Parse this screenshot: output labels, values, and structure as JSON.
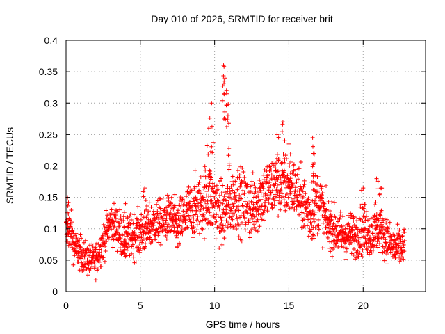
{
  "chart_data": {
    "type": "scatter",
    "title": "Day 010 of 2026, SRMTID for receiver brit",
    "xlabel": "GPS time / hours",
    "ylabel": "SRMTID / TECUs",
    "xlim": [
      0,
      24.2
    ],
    "ylim": [
      0,
      0.4
    ],
    "xticks": [
      0,
      5,
      10,
      15,
      20
    ],
    "xtick_labels": [
      "0",
      "5",
      "10",
      "15",
      "20"
    ],
    "yticks": [
      0,
      0.05,
      0.1,
      0.15,
      0.2,
      0.25,
      0.3,
      0.35,
      0.4
    ],
    "ytick_labels": [
      "0",
      "0.05",
      "0.1",
      "0.15",
      "0.2",
      "0.25",
      "0.3",
      "0.35",
      "0.4"
    ],
    "grid": true,
    "marker": "+",
    "marker_color": "#ff0000",
    "series": [
      {
        "name": "SRMTID",
        "data_range_hours": [
          0,
          22.8
        ],
        "envelope": {
          "x": [
            0.0,
            0.3,
            0.6,
            1.0,
            1.5,
            2.0,
            2.5,
            3.0,
            3.5,
            4.0,
            4.5,
            5.0,
            5.5,
            6.0,
            6.5,
            7.0,
            7.5,
            8.0,
            8.5,
            9.0,
            9.5,
            10.0,
            10.5,
            11.0,
            11.5,
            12.0,
            12.5,
            13.0,
            13.5,
            14.0,
            14.5,
            15.0,
            15.5,
            16.0,
            16.5,
            17.0,
            17.5,
            18.0,
            18.5,
            19.0,
            19.5,
            20.0,
            20.5,
            21.0,
            21.5,
            22.0,
            22.5,
            22.8
          ],
          "center": [
            0.095,
            0.1,
            0.07,
            0.06,
            0.05,
            0.05,
            0.08,
            0.11,
            0.1,
            0.08,
            0.09,
            0.09,
            0.1,
            0.11,
            0.11,
            0.12,
            0.1,
            0.12,
            0.13,
            0.14,
            0.15,
            0.14,
            0.12,
            0.14,
            0.15,
            0.14,
            0.13,
            0.15,
            0.16,
            0.17,
            0.17,
            0.17,
            0.16,
            0.14,
            0.12,
            0.15,
            0.11,
            0.1,
            0.09,
            0.09,
            0.09,
            0.1,
            0.09,
            0.1,
            0.09,
            0.07,
            0.07,
            0.07
          ],
          "spread": [
            0.03,
            0.03,
            0.03,
            0.025,
            0.025,
            0.025,
            0.03,
            0.03,
            0.035,
            0.035,
            0.035,
            0.035,
            0.035,
            0.035,
            0.035,
            0.035,
            0.04,
            0.045,
            0.045,
            0.05,
            0.055,
            0.05,
            0.05,
            0.05,
            0.05,
            0.05,
            0.05,
            0.05,
            0.05,
            0.05,
            0.05,
            0.05,
            0.045,
            0.045,
            0.045,
            0.05,
            0.04,
            0.035,
            0.035,
            0.035,
            0.035,
            0.04,
            0.035,
            0.035,
            0.035,
            0.03,
            0.03,
            0.03
          ]
        },
        "peaks": [
          {
            "x": 0.1,
            "y": 0.15
          },
          {
            "x": 4.0,
            "y": 0.14
          },
          {
            "x": 5.3,
            "y": 0.165
          },
          {
            "x": 9.8,
            "y": 0.3
          },
          {
            "x": 9.6,
            "y": 0.26
          },
          {
            "x": 10.6,
            "y": 0.36
          },
          {
            "x": 10.7,
            "y": 0.34
          },
          {
            "x": 10.8,
            "y": 0.32
          },
          {
            "x": 10.9,
            "y": 0.28
          },
          {
            "x": 14.2,
            "y": 0.25
          },
          {
            "x": 14.6,
            "y": 0.27
          },
          {
            "x": 15.0,
            "y": 0.235
          },
          {
            "x": 16.6,
            "y": 0.245
          },
          {
            "x": 16.7,
            "y": 0.22
          },
          {
            "x": 20.0,
            "y": 0.165
          },
          {
            "x": 20.9,
            "y": 0.18
          },
          {
            "x": 21.2,
            "y": 0.165
          }
        ]
      }
    ]
  }
}
